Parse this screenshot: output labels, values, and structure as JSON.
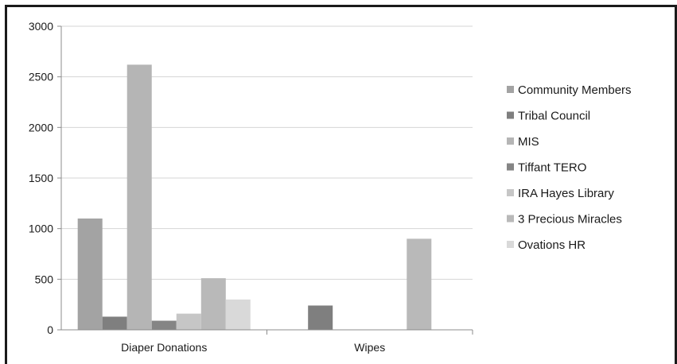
{
  "chart_data": {
    "type": "bar",
    "title": "",
    "xlabel": "",
    "ylabel": "",
    "categories": [
      "Diaper Donations",
      "Wipes"
    ],
    "ylim": [
      0,
      3000
    ],
    "yticks": [
      0,
      500,
      1000,
      1500,
      2000,
      2500,
      3000
    ],
    "grid": true,
    "legend_position": "right",
    "series": [
      {
        "name": "Community Members",
        "color": "#a3a3a3",
        "values": [
          1100,
          0
        ]
      },
      {
        "name": "Tribal Council",
        "color": "#7f7f7f",
        "values": [
          130,
          240
        ]
      },
      {
        "name": "MIS",
        "color": "#b5b5b5",
        "values": [
          2620,
          0
        ]
      },
      {
        "name": "Tiffant TERO",
        "color": "#858585",
        "values": [
          90,
          0
        ]
      },
      {
        "name": "IRA Hayes Library",
        "color": "#c6c6c6",
        "values": [
          160,
          0
        ]
      },
      {
        "name": "3 Precious Miracles",
        "color": "#b9b9b9",
        "values": [
          510,
          900
        ]
      },
      {
        "name": "Ovations HR",
        "color": "#d9d9d9",
        "values": [
          300,
          0
        ]
      }
    ]
  }
}
